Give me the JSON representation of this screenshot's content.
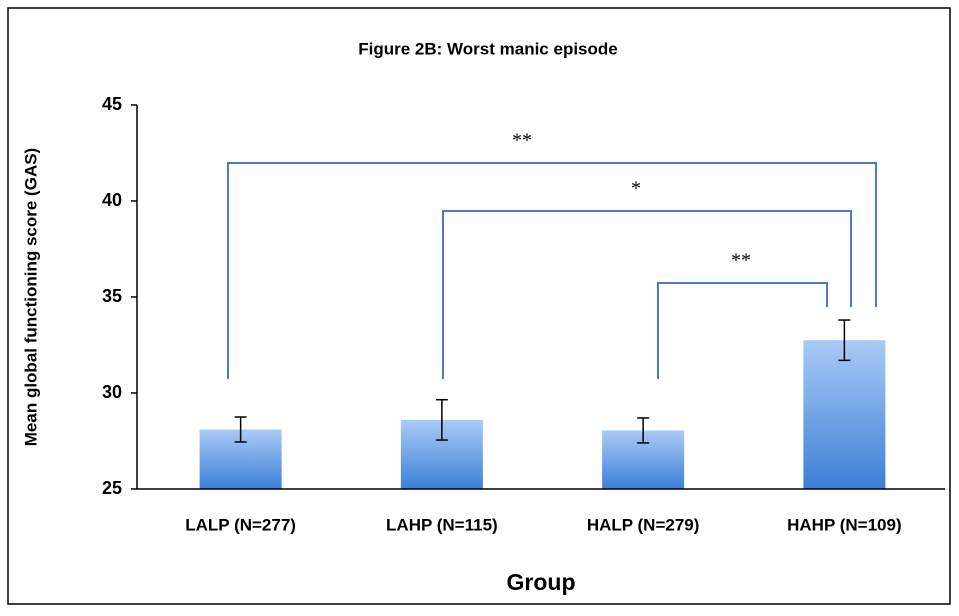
{
  "chart_data": {
    "type": "bar",
    "title": "Figure 2B: Worst manic episode",
    "x_label": "Group",
    "y_label": "Mean global functioning score (GAS)",
    "categories": [
      "LALP (N=277)",
      "LAHP (N=115)",
      "HALP (N=279)",
      "HAHP (N=109)"
    ],
    "values": [
      28.1,
      28.6,
      28.05,
      32.75
    ],
    "errors": [
      0.65,
      1.05,
      0.65,
      1.05
    ],
    "ylim": [
      25,
      45
    ],
    "yticks": [
      25,
      30,
      35,
      40,
      45
    ],
    "annotations": [
      "**",
      "*",
      "**"
    ]
  }
}
